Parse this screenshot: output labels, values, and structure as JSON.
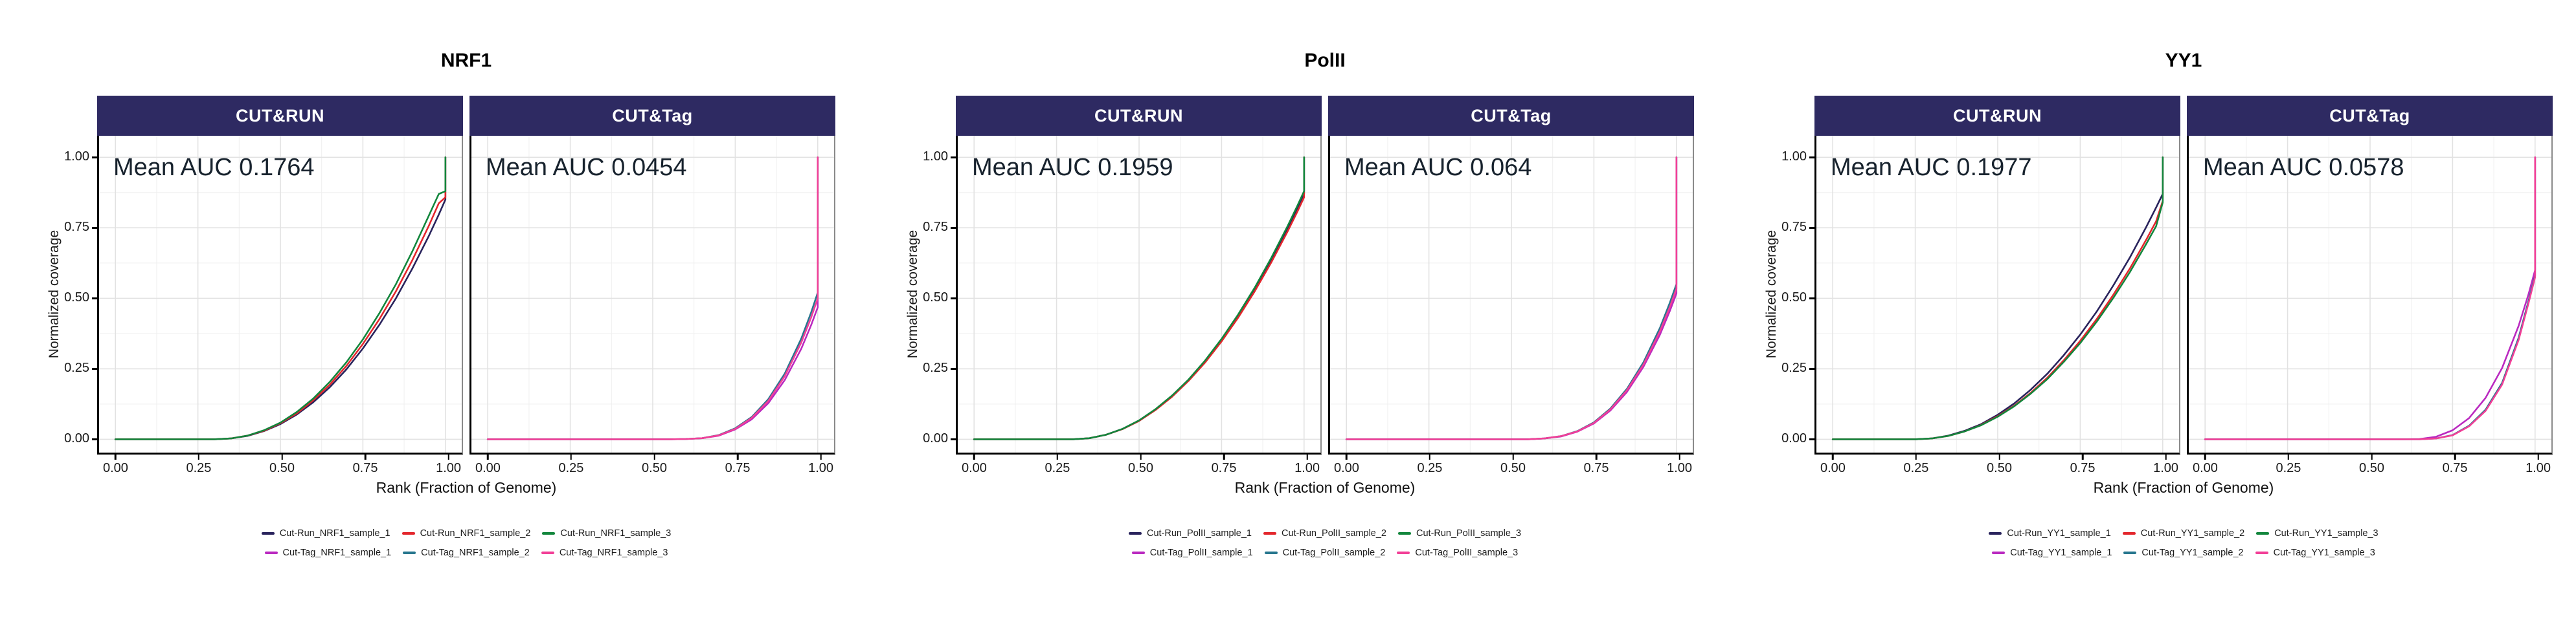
{
  "style": {
    "strip_bg": "#2e2a62",
    "strip_text": "#ffffff",
    "annotation_text": "#17222d",
    "grid_major": "#e2e2e2",
    "grid_minor": "#f0f0f0",
    "axis_line": "#000000",
    "panel_border": "#8a8a8a",
    "series_palette": {
      "cut_run_1": "#29235c",
      "cut_run_2": "#e3262c",
      "cut_run_3": "#12863c",
      "cut_tag_1": "#ba29c0",
      "cut_tag_2": "#27768e",
      "cut_tag_3": "#f23f97"
    }
  },
  "axes": {
    "xticks": [
      "0.00",
      "0.25",
      "0.50",
      "0.75",
      "1.00"
    ],
    "yticks": [
      "0.00",
      "0.25",
      "0.50",
      "0.75",
      "1.00"
    ]
  },
  "chart_data": [
    {
      "type": "line",
      "title": "NRF1",
      "xlabel": "Rank (Fraction of Genome)",
      "ylabel": "Normalized coverage",
      "xlim": [
        0,
        1
      ],
      "ylim": [
        0,
        1
      ],
      "grid": true,
      "legend_position": "bottom",
      "facets": [
        {
          "label": "CUT&RUN",
          "annotation": "Mean AUC 0.1764",
          "mean_auc": 0.1764,
          "x": [
            0,
            0.3,
            0.35,
            0.4,
            0.45,
            0.5,
            0.55,
            0.6,
            0.65,
            0.7,
            0.75,
            0.8,
            0.85,
            0.9,
            0.95,
            0.98,
            1.0,
            1.0
          ],
          "series": [
            {
              "name": "Cut-Run_NRF1_sample_1",
              "color": "#29235c",
              "y": [
                0,
                0,
                0.003,
                0.012,
                0.029,
                0.054,
                0.088,
                0.132,
                0.185,
                0.248,
                0.322,
                0.406,
                0.5,
                0.606,
                0.722,
                0.797,
                0.85,
                1.0
              ]
            },
            {
              "name": "Cut-Run_NRF1_sample_2",
              "color": "#e3262c",
              "y": [
                0,
                0,
                0.003,
                0.013,
                0.03,
                0.057,
                0.092,
                0.139,
                0.194,
                0.26,
                0.338,
                0.426,
                0.525,
                0.636,
                0.758,
                0.837,
                0.858,
                1.0
              ]
            },
            {
              "name": "Cut-Run_NRF1_sample_3",
              "color": "#12863c",
              "y": [
                0,
                0,
                0.003,
                0.013,
                0.032,
                0.059,
                0.097,
                0.145,
                0.204,
                0.273,
                0.354,
                0.447,
                0.55,
                0.667,
                0.794,
                0.87,
                0.88,
                1.0
              ]
            }
          ]
        },
        {
          "label": "CUT&Tag",
          "annotation": "Mean AUC 0.0454",
          "mean_auc": 0.0454,
          "x": [
            0,
            0.55,
            0.6,
            0.65,
            0.7,
            0.75,
            0.8,
            0.85,
            0.9,
            0.95,
            0.98,
            1.0,
            1.0
          ],
          "series": [
            {
              "name": "Cut-Tag_NRF1_sample_1",
              "color": "#ba29c0",
              "y": [
                0,
                0,
                0.001,
                0.004,
                0.013,
                0.035,
                0.071,
                0.128,
                0.21,
                0.321,
                0.405,
                0.468,
                1.0
              ]
            },
            {
              "name": "Cut-Tag_NRF1_sample_2",
              "color": "#27768e",
              "y": [
                0,
                0,
                0.001,
                0.004,
                0.015,
                0.039,
                0.079,
                0.142,
                0.233,
                0.357,
                0.45,
                0.52,
                1.0
              ]
            },
            {
              "name": "Cut-Tag_NRF1_sample_3",
              "color": "#f23f97",
              "y": [
                0,
                0,
                0.001,
                0.004,
                0.014,
                0.037,
                0.076,
                0.136,
                0.224,
                0.343,
                0.432,
                0.5,
                1.0
              ]
            }
          ]
        }
      ]
    },
    {
      "type": "line",
      "title": "PolII",
      "xlabel": "Rank (Fraction of Genome)",
      "ylabel": "Normalized coverage",
      "xlim": [
        0,
        1
      ],
      "ylim": [
        0,
        1
      ],
      "grid": true,
      "legend_position": "bottom",
      "facets": [
        {
          "label": "CUT&RUN",
          "annotation": "Mean AUC 0.1959",
          "mean_auc": 0.1959,
          "x": [
            0,
            0.3,
            0.35,
            0.4,
            0.45,
            0.5,
            0.55,
            0.6,
            0.65,
            0.7,
            0.75,
            0.8,
            0.85,
            0.9,
            0.95,
            0.98,
            1.0,
            1.0
          ],
          "series": [
            {
              "name": "Cut-Run_PolII_sample_1",
              "color": "#29235c",
              "y": [
                0,
                0,
                0.004,
                0.016,
                0.037,
                0.066,
                0.106,
                0.153,
                0.21,
                0.276,
                0.352,
                0.438,
                0.532,
                0.636,
                0.748,
                0.821,
                0.871,
                1.0
              ]
            },
            {
              "name": "Cut-Run_PolII_sample_2",
              "color": "#e3262c",
              "y": [
                0,
                0,
                0.004,
                0.016,
                0.036,
                0.065,
                0.104,
                0.151,
                0.207,
                0.272,
                0.347,
                0.431,
                0.524,
                0.626,
                0.737,
                0.808,
                0.858,
                1.0
              ]
            },
            {
              "name": "Cut-Run_PolII_sample_3",
              "color": "#12863c",
              "y": [
                0,
                0,
                0.004,
                0.016,
                0.037,
                0.067,
                0.107,
                0.155,
                0.212,
                0.279,
                0.356,
                0.442,
                0.537,
                0.642,
                0.756,
                0.829,
                0.88,
                1.0
              ]
            }
          ]
        },
        {
          "label": "CUT&Tag",
          "annotation": "Mean AUC 0.064",
          "mean_auc": 0.064,
          "x": [
            0,
            0.52,
            0.55,
            0.6,
            0.65,
            0.7,
            0.75,
            0.8,
            0.85,
            0.9,
            0.95,
            0.98,
            1.0,
            1.0
          ],
          "series": [
            {
              "name": "Cut-Tag_PolII_sample_1",
              "color": "#ba29c0",
              "y": [
                0,
                0,
                0,
                0.003,
                0.01,
                0.027,
                0.056,
                0.102,
                0.168,
                0.257,
                0.371,
                0.455,
                0.517,
                1.0
              ]
            },
            {
              "name": "Cut-Tag_PolII_sample_2",
              "color": "#27768e",
              "y": [
                0,
                0,
                0,
                0.003,
                0.011,
                0.029,
                0.06,
                0.109,
                0.179,
                0.273,
                0.395,
                0.484,
                0.55,
                1.0
              ]
            },
            {
              "name": "Cut-Tag_PolII_sample_3",
              "color": "#f23f97",
              "y": [
                0,
                0,
                0,
                0.003,
                0.011,
                0.028,
                0.058,
                0.106,
                0.174,
                0.265,
                0.383,
                0.469,
                0.534,
                1.0
              ]
            }
          ]
        }
      ]
    },
    {
      "type": "line",
      "title": "YY1",
      "xlabel": "Rank (Fraction of Genome)",
      "ylabel": "Normalized coverage",
      "xlim": [
        0,
        1
      ],
      "ylim": [
        0,
        1
      ],
      "grid": true,
      "legend_position": "bottom",
      "facets": [
        {
          "label": "CUT&RUN",
          "annotation": "Mean AUC 0.1977",
          "mean_auc": 0.1977,
          "x": [
            0,
            0.25,
            0.3,
            0.35,
            0.4,
            0.45,
            0.5,
            0.55,
            0.6,
            0.65,
            0.7,
            0.75,
            0.8,
            0.85,
            0.9,
            0.95,
            0.98,
            1.0,
            1.0
          ],
          "series": [
            {
              "name": "Cut-Run_YY1_sample_1",
              "color": "#29235c",
              "y": [
                0,
                0,
                0.003,
                0.013,
                0.03,
                0.054,
                0.087,
                0.127,
                0.176,
                0.232,
                0.298,
                0.371,
                0.453,
                0.545,
                0.644,
                0.753,
                0.822,
                0.87,
                1.0
              ]
            },
            {
              "name": "Cut-Run_YY1_sample_2",
              "color": "#e3262c",
              "y": [
                0,
                0,
                0.003,
                0.012,
                0.028,
                0.051,
                0.082,
                0.119,
                0.165,
                0.218,
                0.28,
                0.349,
                0.426,
                0.512,
                0.605,
                0.708,
                0.773,
                0.845,
                1.0
              ]
            },
            {
              "name": "Cut-Run_YY1_sample_3",
              "color": "#12863c",
              "y": [
                0,
                0,
                0.003,
                0.012,
                0.028,
                0.05,
                0.08,
                0.117,
                0.162,
                0.213,
                0.274,
                0.341,
                0.417,
                0.501,
                0.592,
                0.693,
                0.756,
                0.84,
                1.0
              ]
            }
          ]
        },
        {
          "label": "CUT&Tag",
          "annotation": "Mean AUC 0.0578",
          "mean_auc": 0.0578,
          "x": [
            0,
            0.6,
            0.65,
            0.7,
            0.75,
            0.8,
            0.85,
            0.9,
            0.95,
            0.98,
            1.0,
            1.0
          ],
          "series": [
            {
              "name": "Cut-Tag_YY1_sample_1",
              "color": "#ba29c0",
              "y": [
                0,
                0,
                0.001,
                0.009,
                0.032,
                0.075,
                0.147,
                0.253,
                0.402,
                0.514,
                0.6,
                1.0
              ]
            },
            {
              "name": "Cut-Tag_YY1_sample_2",
              "color": "#27768e",
              "y": [
                0,
                0,
                0,
                0.003,
                0.015,
                0.048,
                0.105,
                0.2,
                0.36,
                0.49,
                0.58,
                1.0
              ]
            },
            {
              "name": "Cut-Tag_YY1_sample_3",
              "color": "#f23f97",
              "y": [
                0,
                0,
                0,
                0.003,
                0.014,
                0.046,
                0.101,
                0.194,
                0.352,
                0.482,
                0.575,
                1.0
              ]
            }
          ]
        }
      ]
    }
  ]
}
